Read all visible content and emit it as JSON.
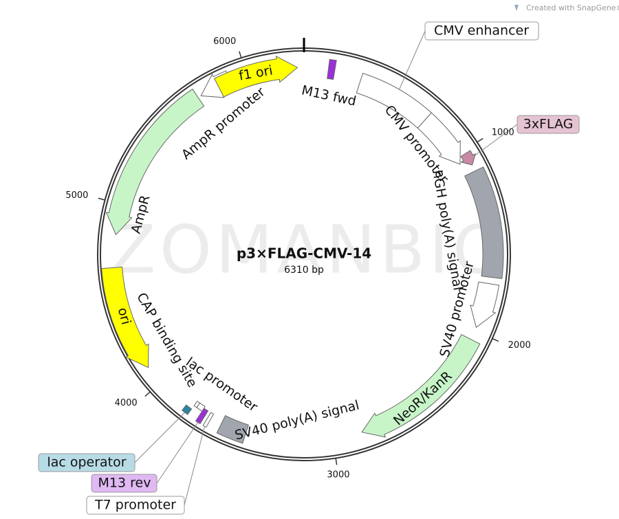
{
  "credit": "Created with SnapGene®",
  "watermark": "ZOMANBIO",
  "map": {
    "name": "p3×FLAG-CMV-14",
    "size": "6310 bp",
    "ticks": [
      "1000",
      "2000",
      "3000",
      "4000",
      "5000",
      "6000"
    ]
  },
  "features": [
    {
      "label": "CMV enhancer"
    },
    {
      "label": "CMV promoter"
    },
    {
      "label": "3xFLAG"
    },
    {
      "label": "hGH poly(A) signal"
    },
    {
      "label": "SV40 promoter"
    },
    {
      "label": "NeoR/KanR"
    },
    {
      "label": "SV40 poly(A) signal"
    },
    {
      "label": "T7 promoter"
    },
    {
      "label": "M13 rev"
    },
    {
      "label": "lac operator"
    },
    {
      "label": "lac promoter"
    },
    {
      "label": "CAP binding site"
    },
    {
      "label": "ori"
    },
    {
      "label": "AmpR"
    },
    {
      "label": "AmpR promoter"
    },
    {
      "label": "f1 ori"
    },
    {
      "label": "M13 fwd"
    }
  ]
}
